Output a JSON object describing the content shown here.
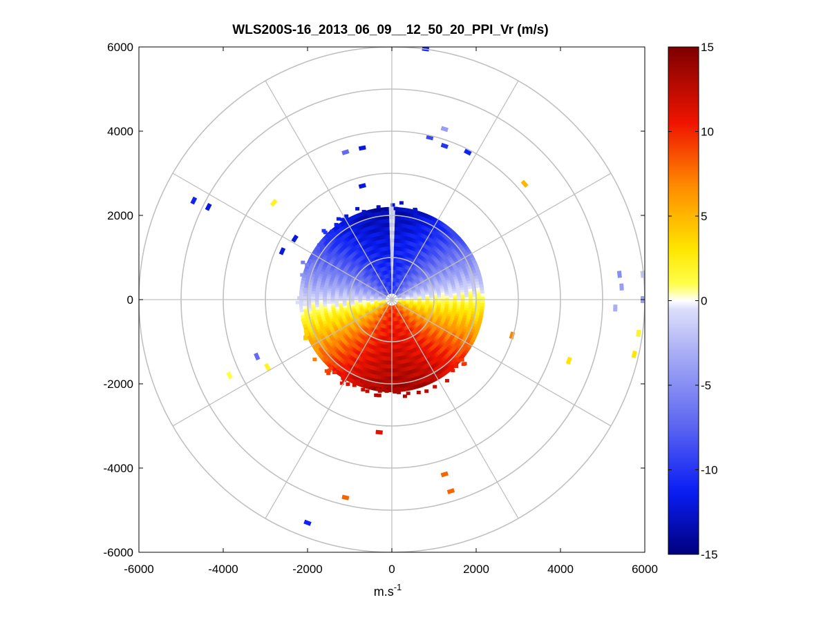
{
  "chart_data": {
    "type": "heatmap",
    "subtype": "polar-ppi",
    "title": "WLS200S-16_2013_06_09__12_50_20_PPI_Vr (m/s)",
    "xlabel_base": "m.s",
    "xlabel_exp": "-1",
    "ylabel": "",
    "xlim": [
      -6000,
      6000
    ],
    "ylim": [
      -6000,
      6000
    ],
    "xticks": [
      -6000,
      -4000,
      -2000,
      0,
      2000,
      4000,
      6000
    ],
    "yticks": [
      6000,
      4000,
      2000,
      0,
      -2000,
      -4000,
      -6000
    ],
    "xtick_labels": [
      "-6000",
      "-4000",
      "-2000",
      "0",
      "2000",
      "4000",
      "6000"
    ],
    "ytick_labels": [
      "6000",
      "4000",
      "2000",
      "0",
      "-2000",
      "-4000",
      "-6000"
    ],
    "polar_grid": {
      "ring_step": 1000,
      "ring_max": 6000,
      "spoke_step_deg": 30
    },
    "core": {
      "inner_radius": 150,
      "outer_radius": 2200
    },
    "colorbar": {
      "range": [
        -15,
        15
      ],
      "ticks": [
        15,
        10,
        5,
        0,
        -5,
        -10,
        -15
      ],
      "tick_labels": [
        "15",
        "10",
        "5",
        "0",
        "-5",
        "-10",
        "-15"
      ],
      "colormap": "blue-white-red"
    },
    "scatter_points": [
      {
        "x": 800,
        "y": 5950,
        "v": -11
      },
      {
        "x": 1250,
        "y": 4050,
        "v": -4
      },
      {
        "x": 900,
        "y": 3850,
        "v": -9
      },
      {
        "x": 1250,
        "y": 3650,
        "v": -10
      },
      {
        "x": 1800,
        "y": 3500,
        "v": -11
      },
      {
        "x": -700,
        "y": 3600,
        "v": -12
      },
      {
        "x": -1100,
        "y": 3500,
        "v": -7
      },
      {
        "x": 3150,
        "y": 2750,
        "v": 5
      },
      {
        "x": -4700,
        "y": 2350,
        "v": -11
      },
      {
        "x": -4350,
        "y": 2200,
        "v": -12
      },
      {
        "x": -2800,
        "y": 2300,
        "v": 2
      },
      {
        "x": -700,
        "y": 2700,
        "v": -12
      },
      {
        "x": -2300,
        "y": 1450,
        "v": -12
      },
      {
        "x": -2600,
        "y": 1150,
        "v": -12
      },
      {
        "x": 5400,
        "y": 600,
        "v": -5
      },
      {
        "x": 5450,
        "y": 300,
        "v": -4
      },
      {
        "x": 5300,
        "y": -200,
        "v": -3
      },
      {
        "x": 5950,
        "y": 600,
        "v": -2
      },
      {
        "x": 5950,
        "y": 0,
        "v": -4
      },
      {
        "x": 5850,
        "y": -800,
        "v": 2
      },
      {
        "x": 5750,
        "y": -1300,
        "v": 3
      },
      {
        "x": 4200,
        "y": -1450,
        "v": 3
      },
      {
        "x": 2850,
        "y": -850,
        "v": 7
      },
      {
        "x": -3200,
        "y": -1350,
        "v": -7
      },
      {
        "x": -2950,
        "y": -1600,
        "v": 2
      },
      {
        "x": -3850,
        "y": -1800,
        "v": 1
      },
      {
        "x": -300,
        "y": -3150,
        "v": 11
      },
      {
        "x": 1250,
        "y": -4150,
        "v": 8
      },
      {
        "x": 1400,
        "y": -4550,
        "v": 8
      },
      {
        "x": -1100,
        "y": -4700,
        "v": 8
      },
      {
        "x": -2000,
        "y": -5300,
        "v": -11
      }
    ]
  }
}
